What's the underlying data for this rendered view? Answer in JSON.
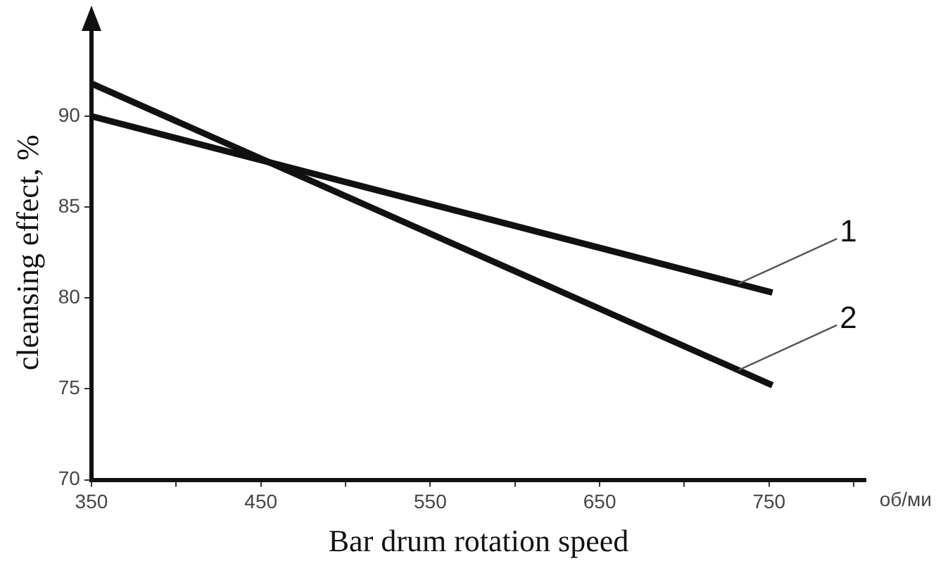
{
  "chart_data": {
    "type": "line",
    "xlabel": "Bar drum rotation speed",
    "ylabel": "cleansing effect, %",
    "series": [
      {
        "name": "1",
        "color": "#111111",
        "values": [
          90.0,
          80.3
        ]
      },
      {
        "name": "2",
        "color": "#111111",
        "values": [
          91.8,
          75.2
        ]
      }
    ],
    "x": [
      350,
      752
    ],
    "xlim": [
      350,
      807
    ],
    "ylim": [
      70,
      95
    ],
    "xticks": [
      350,
      {
        "value": 400,
        "label": null
      },
      450,
      {
        "value": 500,
        "label": null
      },
      550,
      {
        "value": 600,
        "label": null
      },
      650,
      {
        "value": 700,
        "label": null
      },
      750,
      {
        "value": 800,
        "label": null
      }
    ],
    "yticks": [
      70,
      75,
      80,
      85,
      90
    ],
    "annotations": [
      "об/ми"
    ],
    "grid": false,
    "legend": false,
    "marker": "none",
    "line_style": "solid"
  }
}
